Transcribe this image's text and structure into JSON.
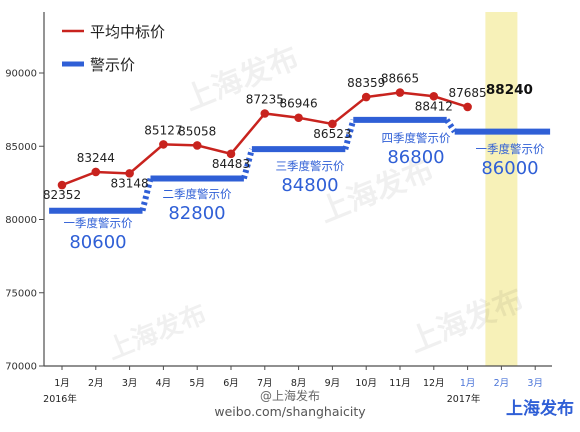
{
  "chart_data": {
    "type": "line",
    "categories": [
      "1月",
      "2月",
      "3月",
      "4月",
      "5月",
      "6月",
      "7月",
      "8月",
      "9月",
      "10月",
      "11月",
      "12月",
      "1月",
      "2月",
      "3月"
    ],
    "year_labels": [
      "2016年",
      "2017年"
    ],
    "ylim": [
      70000,
      90000
    ],
    "y_ticks": [
      70000,
      75000,
      80000,
      85000,
      90000
    ],
    "grid": false,
    "legend_position": "top-left",
    "series": [
      {
        "name": "平均中标价",
        "color": "#c8231e",
        "values": [
          82352,
          83244,
          83148,
          85127,
          85058,
          84483,
          87235,
          86946,
          86523,
          88359,
          88665,
          88412,
          87685,
          null,
          null
        ]
      },
      {
        "name": "警示价",
        "color": "#2f5fd6",
        "values": [
          80600,
          80600,
          80600,
          82800,
          82800,
          82800,
          84800,
          84800,
          84800,
          86800,
          86800,
          86800,
          86000,
          86000,
          86000
        ]
      }
    ],
    "annotations": [
      {
        "text": "一季度警示价",
        "value": "80600"
      },
      {
        "text": "二季度警示价",
        "value": "82800"
      },
      {
        "text": "三季度警示价",
        "value": "84800"
      },
      {
        "text": "四季度警示价",
        "value": "86800"
      },
      {
        "text": "一季度警示价",
        "value": "86000"
      }
    ],
    "highlight": {
      "category": "2月",
      "value_label": "88240",
      "color": "#f7f1b8"
    },
    "colors": {
      "year_2017_month": "#4a74d8",
      "axis": "#4d4d4d"
    }
  },
  "watermark": {
    "text": "上海发布",
    "footer_url": "weibo.com/shanghaicity",
    "footer_handle": "@上海发布",
    "footer_logo": "上海发布"
  }
}
